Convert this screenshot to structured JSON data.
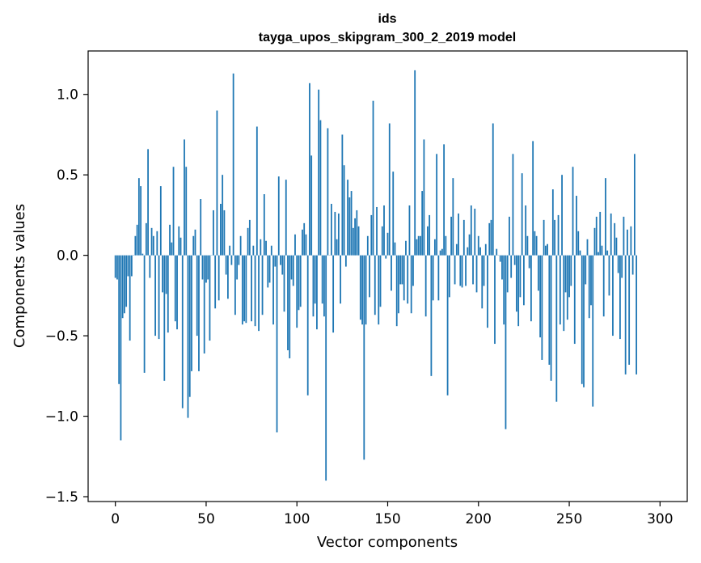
{
  "chart_data": {
    "type": "bar",
    "title": "ids",
    "subtitle": "tayga_upos_skipgram_300_2_2019 model",
    "xlabel": "Vector components",
    "ylabel": "Components values",
    "xlim": [
      -15,
      315
    ],
    "ylim": [
      -1.53,
      1.27
    ],
    "xticks": [
      0,
      50,
      100,
      150,
      200,
      250,
      300
    ],
    "xtick_labels": [
      "0",
      "50",
      "100",
      "150",
      "200",
      "250",
      "300"
    ],
    "yticks": [
      -1.5,
      -1.0,
      -0.5,
      0.0,
      0.5,
      1.0
    ],
    "ytick_labels": [
      "−1.5",
      "−1.0",
      "−0.5",
      "0.0",
      "0.5",
      "1.0"
    ],
    "bar_color": "#1f77b4",
    "values": [
      -0.14,
      -0.15,
      -0.8,
      -1.15,
      -0.39,
      -0.36,
      -0.32,
      -0.13,
      -0.53,
      -0.13,
      0.0,
      0.12,
      0.19,
      0.48,
      0.43,
      0.01,
      -0.73,
      0.2,
      0.66,
      -0.14,
      0.17,
      0.12,
      -0.5,
      0.15,
      -0.52,
      0.43,
      -0.23,
      -0.78,
      -0.24,
      -0.48,
      0.19,
      0.08,
      0.55,
      -0.41,
      -0.46,
      0.18,
      0.11,
      -0.95,
      0.72,
      0.55,
      -1.01,
      -0.88,
      -0.72,
      0.12,
      0.16,
      -0.5,
      -0.72,
      0.35,
      -0.15,
      -0.61,
      -0.17,
      -0.15,
      -0.53,
      0.0,
      0.28,
      -0.33,
      0.9,
      -0.28,
      0.32,
      0.5,
      0.28,
      -0.12,
      -0.27,
      0.06,
      -0.06,
      1.13,
      -0.37,
      -0.15,
      -0.06,
      0.12,
      -0.43,
      -0.41,
      -0.42,
      0.17,
      0.22,
      -0.41,
      0.06,
      -0.44,
      0.8,
      -0.47,
      0.1,
      -0.37,
      0.38,
      0.09,
      -0.2,
      -0.17,
      0.06,
      -0.43,
      -0.07,
      -1.1,
      0.49,
      -0.06,
      -0.12,
      -0.35,
      0.47,
      -0.59,
      -0.64,
      -0.15,
      -0.19,
      0.13,
      -0.45,
      -0.34,
      -0.32,
      0.16,
      0.2,
      0.13,
      -0.87,
      1.07,
      0.62,
      -0.38,
      -0.3,
      -0.46,
      1.03,
      0.84,
      -0.3,
      -0.38,
      -1.4,
      0.79,
      0.0,
      0.32,
      -0.48,
      0.27,
      0.1,
      0.26,
      -0.3,
      0.75,
      0.56,
      -0.07,
      0.47,
      0.36,
      0.4,
      0.17,
      0.23,
      0.28,
      0.18,
      -0.4,
      -0.43,
      -1.27,
      -0.43,
      0.12,
      -0.26,
      0.25,
      0.96,
      -0.37,
      0.3,
      -0.43,
      -0.32,
      0.18,
      0.31,
      -0.02,
      0.14,
      0.82,
      -0.22,
      0.52,
      0.08,
      -0.44,
      -0.36,
      -0.18,
      -0.18,
      -0.28,
      0.09,
      -0.3,
      0.31,
      -0.36,
      -0.19,
      1.15,
      0.1,
      0.12,
      0.12,
      0.4,
      0.72,
      -0.38,
      0.18,
      0.25,
      -0.75,
      -0.28,
      0.1,
      0.63,
      -0.28,
      0.03,
      0.04,
      0.69,
      0.12,
      -0.87,
      -0.26,
      0.24,
      0.48,
      -0.18,
      0.07,
      0.26,
      -0.19,
      -0.2,
      0.22,
      -0.19,
      0.05,
      0.13,
      0.31,
      -0.18,
      0.29,
      -0.23,
      0.12,
      0.05,
      -0.33,
      -0.19,
      0.07,
      -0.45,
      0.2,
      0.22,
      0.82,
      -0.55,
      0.04,
      0.0,
      -0.04,
      -0.15,
      -0.43,
      -1.08,
      -0.23,
      0.24,
      -0.14,
      0.63,
      -0.06,
      -0.35,
      -0.44,
      -0.26,
      0.51,
      -0.31,
      0.31,
      0.12,
      -0.08,
      -0.41,
      0.71,
      0.15,
      0.12,
      -0.22,
      -0.51,
      -0.65,
      0.22,
      0.06,
      0.07,
      -0.68,
      -0.78,
      0.41,
      0.22,
      -0.91,
      0.25,
      -0.43,
      0.5,
      -0.47,
      -0.23,
      -0.4,
      -0.26,
      -0.19,
      0.55,
      -0.55,
      0.37,
      0.15,
      0.03,
      -0.8,
      -0.82,
      -0.18,
      0.1,
      -0.39,
      -0.31,
      -0.94,
      0.17,
      0.24,
      0.02,
      0.27,
      0.06,
      -0.38,
      0.48,
      0.03,
      -0.25,
      0.26,
      -0.5,
      0.2,
      0.11,
      -0.11,
      -0.52,
      -0.14,
      0.24,
      -0.74,
      0.16,
      -0.68,
      0.18,
      -0.12,
      0.63,
      -0.74
    ]
  }
}
